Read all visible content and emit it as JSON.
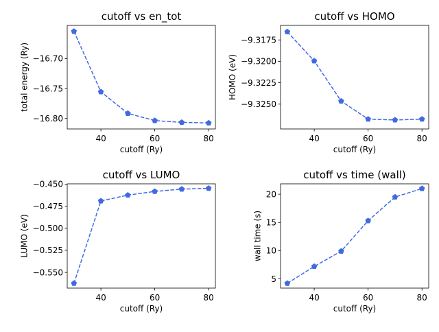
{
  "chart_data": [
    {
      "type": "line",
      "title": "cutoff vs en_tot",
      "xlabel": "cutoff (Ry)",
      "ylabel": "total energy (Ry)",
      "x": [
        30,
        40,
        50,
        60,
        70,
        80
      ],
      "y": [
        -16.6545,
        -16.7555,
        -16.7915,
        -16.8035,
        -16.8065,
        -16.8075
      ],
      "xlim": [
        27.5,
        82.5
      ],
      "ylim": [
        -16.8175,
        -16.6445
      ],
      "xticks": [
        40,
        60,
        80
      ],
      "xtick_labels": [
        "40",
        "60",
        "80"
      ],
      "yticks": [
        -16.7,
        -16.75,
        -16.8
      ],
      "ytick_labels": [
        "−16.70",
        "−16.75",
        "−16.80"
      ],
      "color": "#4169e1",
      "line_style": "dashed",
      "marker": "pentagon"
    },
    {
      "type": "line",
      "title": "cutoff vs HOMO",
      "xlabel": "cutoff (Ry)",
      "ylabel": "HOMO (eV)",
      "x": [
        30,
        40,
        50,
        60,
        70,
        80
      ],
      "y": [
        -9.31655,
        -9.31995,
        -9.32465,
        -9.32675,
        -9.32685,
        -9.32675
      ],
      "xlim": [
        27.5,
        82.5
      ],
      "ylim": [
        -9.3279,
        -9.3158
      ],
      "xticks": [
        40,
        60,
        80
      ],
      "xtick_labels": [
        "40",
        "60",
        "80"
      ],
      "yticks": [
        -9.3175,
        -9.32,
        -9.3225,
        -9.325
      ],
      "ytick_labels": [
        "−9.3175",
        "−9.3200",
        "−9.3225",
        "−9.3250"
      ],
      "color": "#4169e1",
      "line_style": "dashed",
      "marker": "pentagon"
    },
    {
      "type": "line",
      "title": "cutoff vs LUMO",
      "xlabel": "cutoff (Ry)",
      "ylabel": "LUMO (eV)",
      "x": [
        30,
        40,
        50,
        60,
        70,
        80
      ],
      "y": [
        -0.5624,
        -0.4691,
        -0.4625,
        -0.4583,
        -0.4557,
        -0.4548
      ],
      "xlim": [
        27.5,
        82.5
      ],
      "ylim": [
        -0.5678,
        -0.4497
      ],
      "xticks": [
        40,
        60,
        80
      ],
      "xtick_labels": [
        "40",
        "60",
        "80"
      ],
      "yticks": [
        -0.45,
        -0.475,
        -0.5,
        -0.525,
        -0.55
      ],
      "ytick_labels": [
        "−0.450",
        "−0.475",
        "−0.500",
        "−0.525",
        "−0.550"
      ],
      "color": "#4169e1",
      "line_style": "dashed",
      "marker": "pentagon"
    },
    {
      "type": "line",
      "title": "cutoff vs time (wall)",
      "xlabel": "cutoff (Ry)",
      "ylabel": "wall time (s)",
      "x": [
        30,
        40,
        50,
        60,
        70,
        80
      ],
      "y": [
        4.2,
        7.2,
        9.9,
        15.3,
        19.5,
        21.0
      ],
      "xlim": [
        27.5,
        82.5
      ],
      "ylim": [
        3.36,
        21.84
      ],
      "xticks": [
        40,
        60,
        80
      ],
      "xtick_labels": [
        "40",
        "60",
        "80"
      ],
      "yticks": [
        5,
        10,
        15,
        20
      ],
      "ytick_labels": [
        "5",
        "10",
        "15",
        "20"
      ],
      "color": "#4169e1",
      "line_style": "dashed",
      "marker": "pentagon"
    }
  ]
}
